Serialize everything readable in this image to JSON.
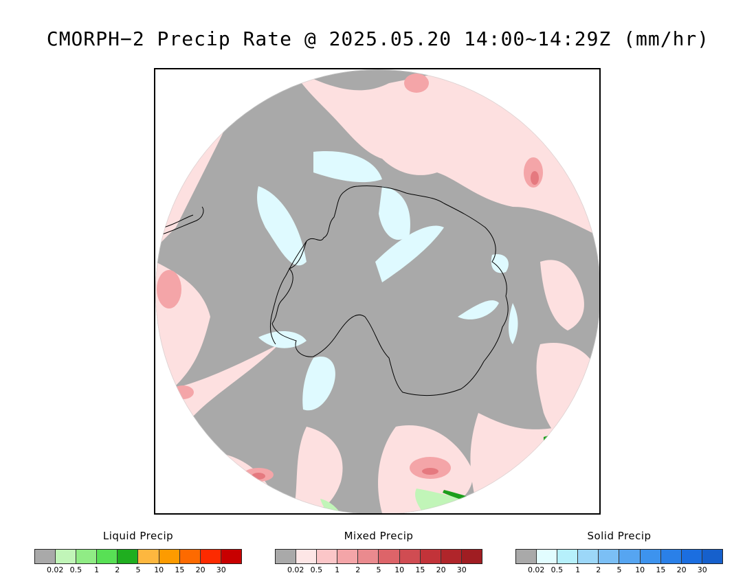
{
  "title": "CMORPH−2 Precip Rate @ 2025.05.20 14:00~14:29Z (mm/hr)",
  "map": {
    "projection": "south-polar-stereographic",
    "colors": {
      "no_precip": "#a9a9a9",
      "outside": "#ffffff",
      "mixed_light": "#fde0e0",
      "mixed_mid": "#f4a5a8",
      "mixed_heavy": "#e5797f",
      "solid_light": "#dffaff",
      "liquid_light": "#c1f5b8",
      "liquid_mid": "#5ed85a",
      "liquid_heavy": "#1b9e1b",
      "coastline": "#000000"
    }
  },
  "legends": [
    {
      "title": "Liquid Precip",
      "colors": [
        "#a9a9a9",
        "#c1f5b8",
        "#90ec85",
        "#58e055",
        "#1fae1f",
        "#fdb73f",
        "#fd9b00",
        "#fd6a00",
        "#fd2a00",
        "#c80000"
      ],
      "ticks": [
        "0.02",
        "0.5",
        "1",
        "2",
        "5",
        "10",
        "15",
        "20",
        "30"
      ]
    },
    {
      "title": "Mixed Precip",
      "colors": [
        "#a9a9a9",
        "#fde6e6",
        "#fbc6c8",
        "#f4a5a8",
        "#ea8a8e",
        "#dd6469",
        "#d04c52",
        "#c23339",
        "#b0252a",
        "#a01d22"
      ],
      "ticks": [
        "0.02",
        "0.5",
        "1",
        "2",
        "5",
        "10",
        "15",
        "20",
        "30"
      ]
    },
    {
      "title": "Solid Precip",
      "colors": [
        "#a9a9a9",
        "#e2fdff",
        "#b6f0fb",
        "#9cd7f8",
        "#7bbff5",
        "#56a5f1",
        "#3d93ee",
        "#2a80e8",
        "#1b6ee0",
        "#1660cc"
      ],
      "ticks": [
        "0.02",
        "0.5",
        "1",
        "2",
        "5",
        "10",
        "15",
        "20",
        "30"
      ]
    }
  ]
}
